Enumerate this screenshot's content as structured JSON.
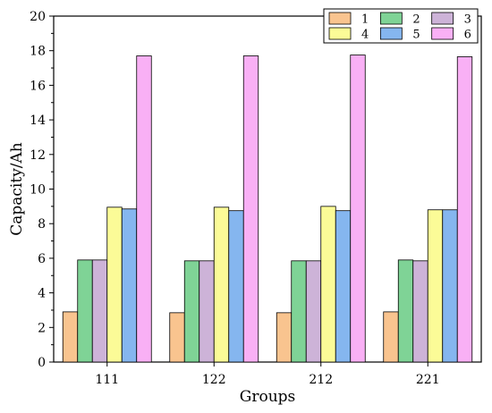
{
  "chart_data": {
    "type": "bar",
    "title": "",
    "xlabel": "Groups",
    "ylabel": "Capacity/Ah",
    "ylim": [
      0,
      20
    ],
    "yticks": [
      0,
      2,
      4,
      6,
      8,
      10,
      12,
      14,
      16,
      18,
      20
    ],
    "categories": [
      "111",
      "122",
      "212",
      "221"
    ],
    "series": [
      {
        "name": "1",
        "color": "#f9c48f",
        "values": [
          2.9,
          2.85,
          2.85,
          2.9
        ]
      },
      {
        "name": "2",
        "color": "#7fd396",
        "values": [
          5.9,
          5.85,
          5.85,
          5.9
        ]
      },
      {
        "name": "3",
        "color": "#cdb3d8",
        "values": [
          5.9,
          5.85,
          5.85,
          5.85
        ]
      },
      {
        "name": "4",
        "color": "#fbfb97",
        "values": [
          8.95,
          8.95,
          9.0,
          8.8
        ]
      },
      {
        "name": "5",
        "color": "#85b6ef",
        "values": [
          8.85,
          8.75,
          8.75,
          8.8
        ]
      },
      {
        "name": "6",
        "color": "#f9b0f5",
        "values": [
          17.7,
          17.7,
          17.75,
          17.65
        ]
      }
    ],
    "grid": false,
    "legend_position": "top-right"
  }
}
